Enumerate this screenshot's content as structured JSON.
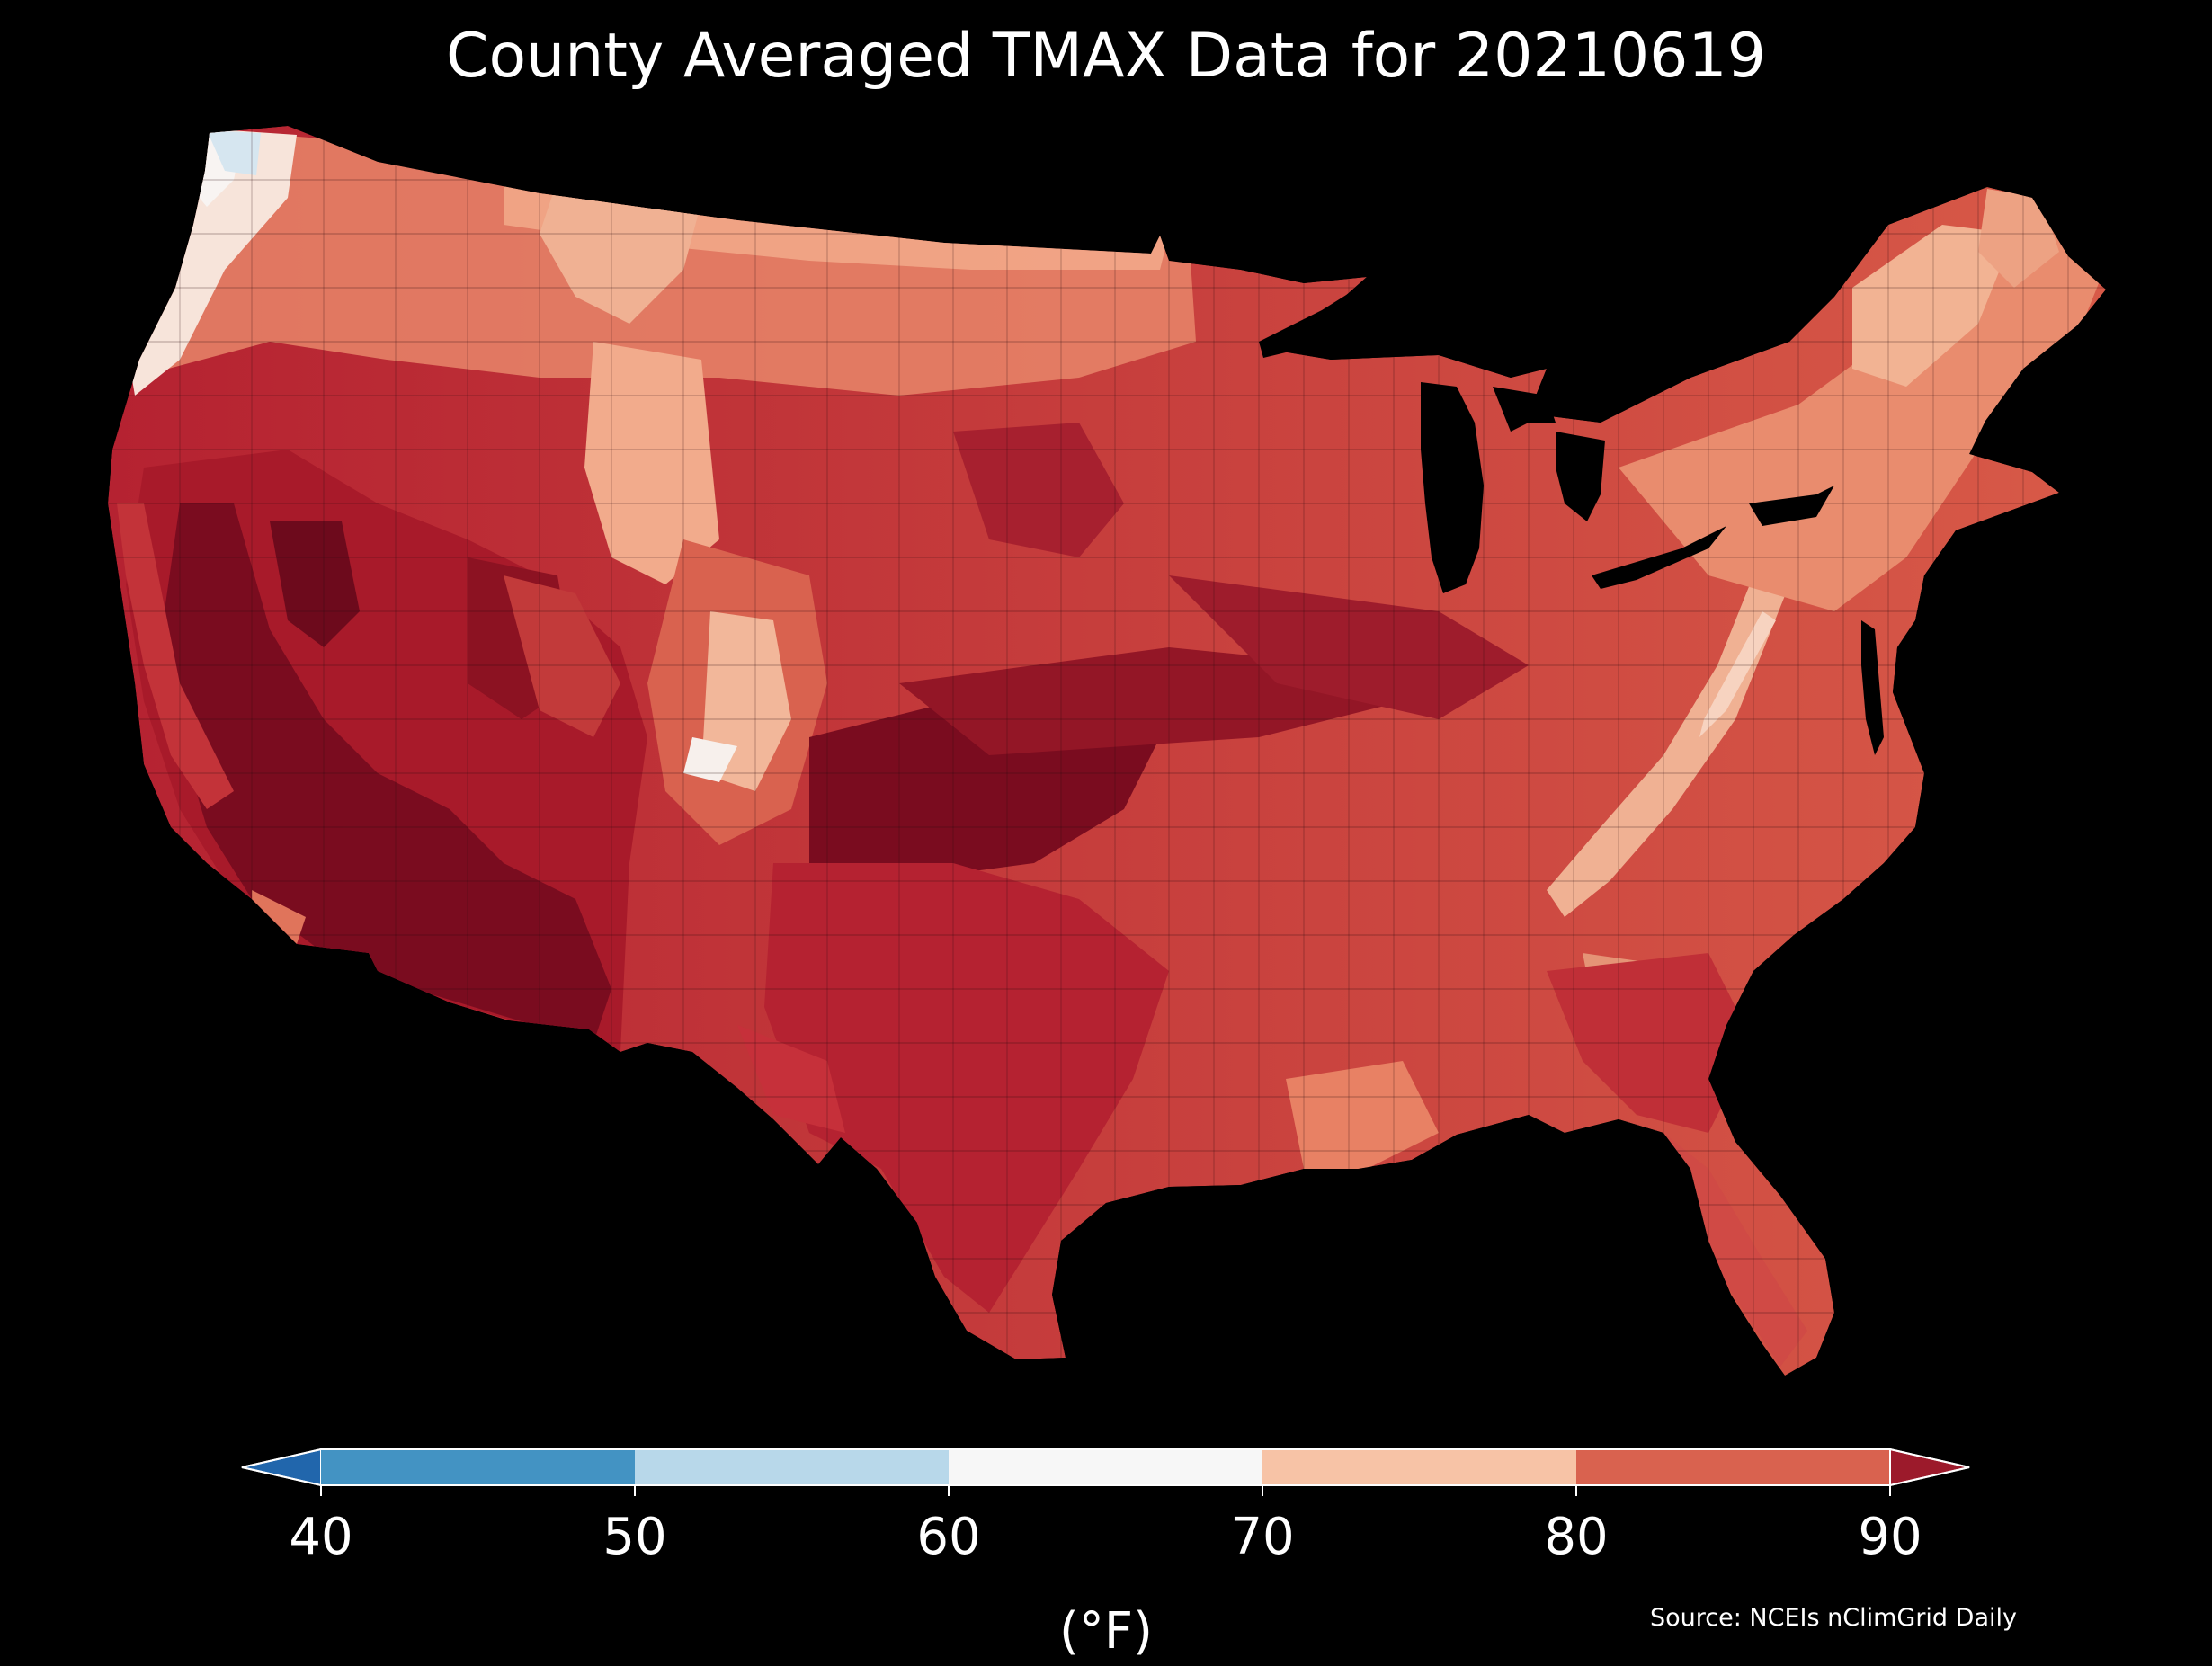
{
  "title": "County Averaged TMAX Data for 20210619",
  "colorbar": {
    "unit_label": "(°F)",
    "ticks": [
      "40",
      "50",
      "60",
      "70",
      "80",
      "90"
    ],
    "extend": "both",
    "bins": [
      {
        "range": "< 40",
        "color": "#2166ac"
      },
      {
        "range": "40-50",
        "color": "#4393c3"
      },
      {
        "range": "50-60",
        "color": "#b8d8ea"
      },
      {
        "range": "60-70",
        "color": "#f7f7f7"
      },
      {
        "range": "70-80",
        "color": "#f7c3a6"
      },
      {
        "range": "80-90",
        "color": "#d9624f"
      },
      {
        "range": "> 90",
        "color": "#9c1a2b"
      }
    ]
  },
  "source": "Source: NCEIs nClimGrid Daily",
  "map": {
    "region": "Contiguous United States",
    "variable": "TMAX",
    "units": "°F",
    "aggregation": "county average",
    "background": "#000000",
    "hottest_areas": [
      "Desert Southwest",
      "Southern Plains",
      "Central Valley of California"
    ],
    "coolest_areas": [
      "Pacific Northwest coast",
      "Appalachian ridges",
      "Northern Rockies",
      "New England"
    ]
  }
}
